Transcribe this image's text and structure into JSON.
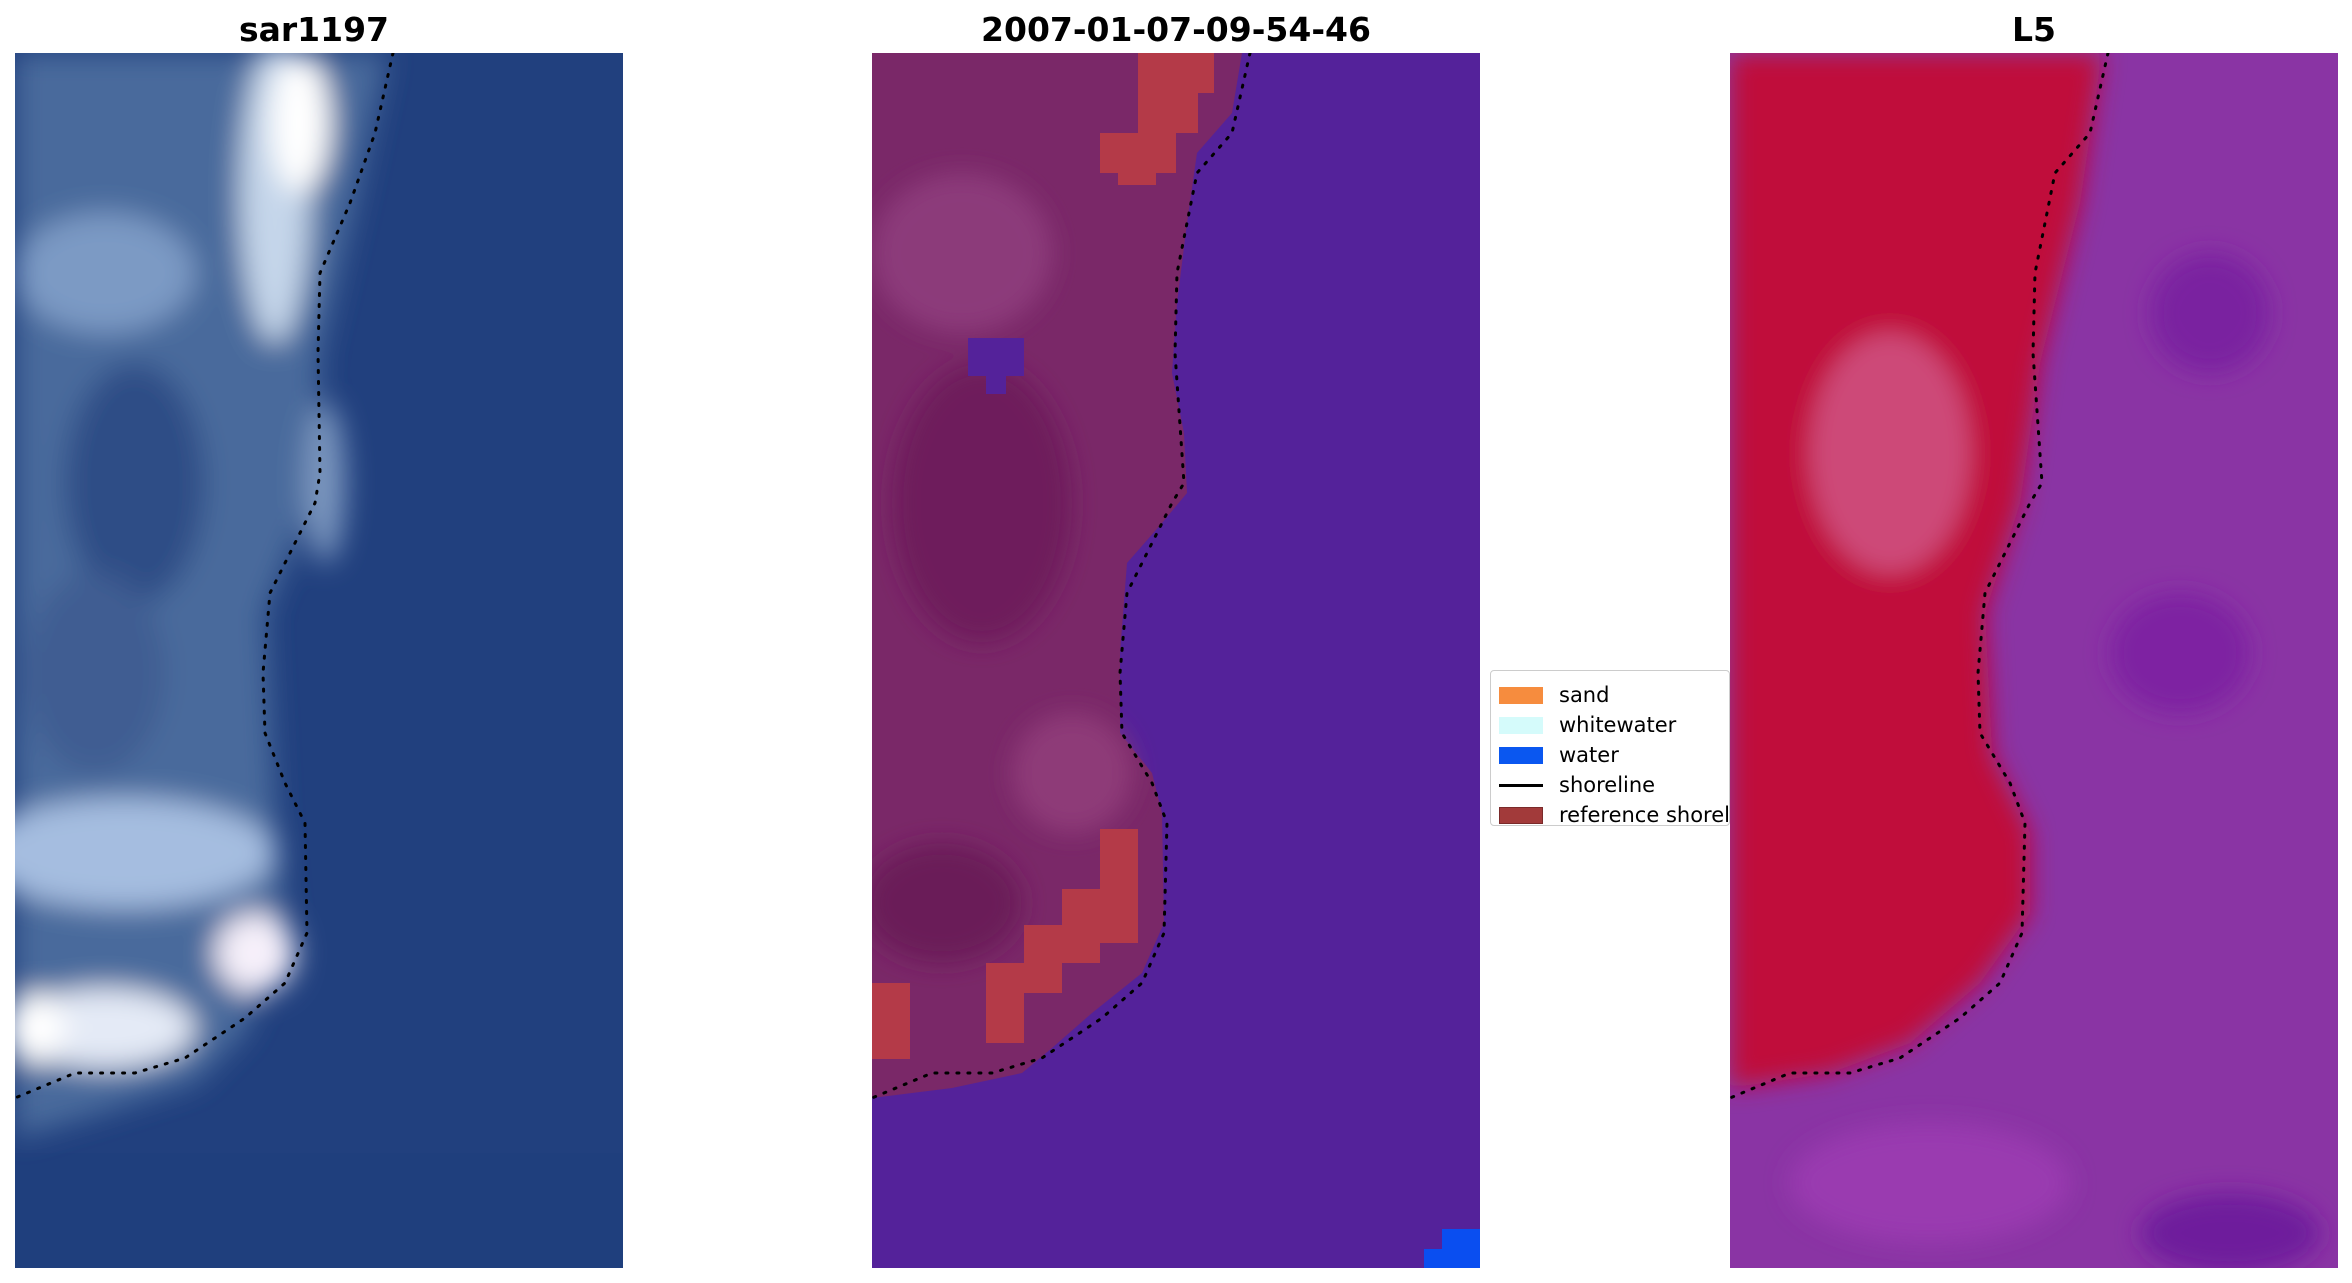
{
  "figure": {
    "titles": {
      "left": "sar1197",
      "center": "2007-01-07-09-54-46",
      "right": "L5"
    },
    "legend": {
      "items": [
        {
          "label": "sand",
          "kind": "patch",
          "color": "#f68c3e"
        },
        {
          "label": "whitewater",
          "kind": "patch",
          "color": "#d5fbfb"
        },
        {
          "label": "water",
          "kind": "patch",
          "color": "#0a57f0"
        },
        {
          "label": "shoreline",
          "kind": "line",
          "color": "#000000"
        },
        {
          "label": "reference shoreline",
          "kind": "patch",
          "color": "#a23a3a"
        }
      ]
    },
    "colors": {
      "rgb_water": "#21407e",
      "rgb_land": "#4b6a9c",
      "rgb_whitewater": "#f3f6fb",
      "classified_water": "#54229a",
      "classified_land": "#7a2868",
      "classified_ref": "#b43a48",
      "classified_water_pixel": "#0a4ef0",
      "l5_land": "#c0103a",
      "l5_water": "#8a34a4",
      "shoreline_dots": "#000000"
    }
  }
}
